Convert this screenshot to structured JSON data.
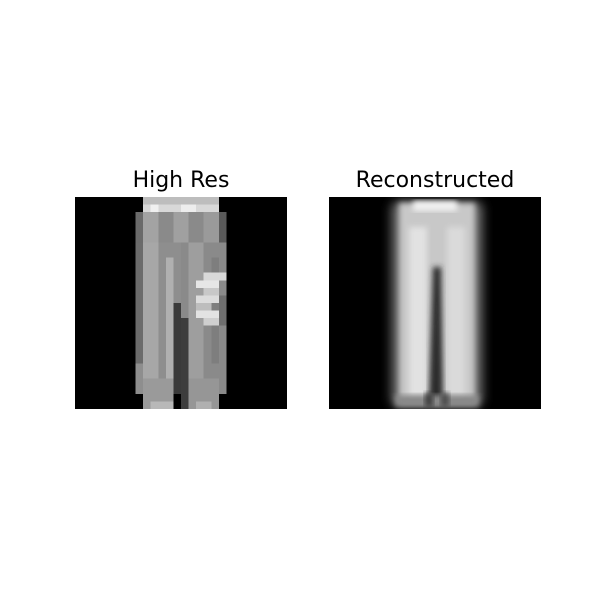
{
  "panels": [
    {
      "title": "High Res",
      "content": "pixelated grayscale image of trousers on black background"
    },
    {
      "title": "Reconstructed",
      "content": "blurred grayscale reconstruction of trousers on black background"
    }
  ],
  "colors": {
    "background": "#ffffff",
    "image_background": "#000000",
    "title_text": "#000000"
  }
}
